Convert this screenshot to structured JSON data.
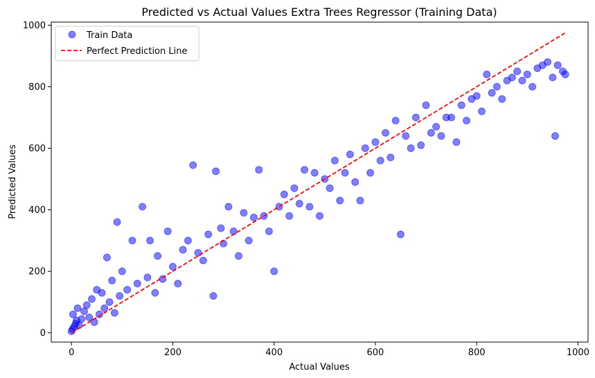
{
  "chart_data": {
    "type": "scatter",
    "title": "Predicted vs Actual Values Extra Trees Regressor (Training Data)",
    "xlabel": "Actual Values",
    "ylabel": "Predicted Values",
    "xlim": [
      -40,
      1020
    ],
    "ylim": [
      -30,
      1010
    ],
    "xticks": [
      0,
      200,
      400,
      600,
      800,
      1000
    ],
    "yticks": [
      0,
      200,
      400,
      600,
      800,
      1000
    ],
    "grid": false,
    "legend_position": "top-left",
    "series": [
      {
        "name": "Train Data",
        "kind": "scatter",
        "color": "#0000ff",
        "opacity": 0.5,
        "points": [
          [
            0,
            5
          ],
          [
            2,
            12
          ],
          [
            5,
            20
          ],
          [
            8,
            30
          ],
          [
            10,
            40
          ],
          [
            3,
            60
          ],
          [
            12,
            80
          ],
          [
            15,
            25
          ],
          [
            20,
            45
          ],
          [
            25,
            70
          ],
          [
            30,
            90
          ],
          [
            35,
            50
          ],
          [
            40,
            110
          ],
          [
            45,
            35
          ],
          [
            50,
            140
          ],
          [
            55,
            60
          ],
          [
            60,
            130
          ],
          [
            65,
            80
          ],
          [
            70,
            245
          ],
          [
            75,
            100
          ],
          [
            80,
            170
          ],
          [
            85,
            65
          ],
          [
            90,
            360
          ],
          [
            95,
            120
          ],
          [
            100,
            200
          ],
          [
            110,
            140
          ],
          [
            120,
            300
          ],
          [
            130,
            160
          ],
          [
            140,
            410
          ],
          [
            150,
            180
          ],
          [
            155,
            300
          ],
          [
            165,
            130
          ],
          [
            170,
            250
          ],
          [
            180,
            175
          ],
          [
            190,
            330
          ],
          [
            200,
            215
          ],
          [
            210,
            160
          ],
          [
            220,
            270
          ],
          [
            230,
            300
          ],
          [
            240,
            545
          ],
          [
            250,
            260
          ],
          [
            260,
            235
          ],
          [
            270,
            320
          ],
          [
            280,
            120
          ],
          [
            285,
            525
          ],
          [
            295,
            340
          ],
          [
            300,
            290
          ],
          [
            310,
            410
          ],
          [
            320,
            330
          ],
          [
            330,
            250
          ],
          [
            340,
            390
          ],
          [
            350,
            300
          ],
          [
            360,
            375
          ],
          [
            370,
            530
          ],
          [
            380,
            380
          ],
          [
            390,
            330
          ],
          [
            400,
            200
          ],
          [
            410,
            410
          ],
          [
            420,
            450
          ],
          [
            430,
            380
          ],
          [
            440,
            470
          ],
          [
            450,
            420
          ],
          [
            460,
            530
          ],
          [
            470,
            410
          ],
          [
            480,
            520
          ],
          [
            490,
            380
          ],
          [
            500,
            500
          ],
          [
            510,
            470
          ],
          [
            520,
            560
          ],
          [
            530,
            430
          ],
          [
            540,
            520
          ],
          [
            550,
            580
          ],
          [
            560,
            490
          ],
          [
            570,
            430
          ],
          [
            580,
            600
          ],
          [
            590,
            520
          ],
          [
            600,
            620
          ],
          [
            610,
            560
          ],
          [
            620,
            650
          ],
          [
            630,
            570
          ],
          [
            640,
            690
          ],
          [
            650,
            320
          ],
          [
            660,
            640
          ],
          [
            670,
            600
          ],
          [
            680,
            700
          ],
          [
            690,
            610
          ],
          [
            700,
            740
          ],
          [
            710,
            650
          ],
          [
            720,
            670
          ],
          [
            730,
            640
          ],
          [
            740,
            700
          ],
          [
            750,
            700
          ],
          [
            760,
            620
          ],
          [
            770,
            740
          ],
          [
            780,
            690
          ],
          [
            790,
            760
          ],
          [
            800,
            770
          ],
          [
            810,
            720
          ],
          [
            820,
            840
          ],
          [
            830,
            780
          ],
          [
            840,
            800
          ],
          [
            850,
            760
          ],
          [
            860,
            820
          ],
          [
            870,
            830
          ],
          [
            880,
            850
          ],
          [
            890,
            820
          ],
          [
            900,
            840
          ],
          [
            910,
            800
          ],
          [
            920,
            860
          ],
          [
            930,
            870
          ],
          [
            940,
            880
          ],
          [
            950,
            830
          ],
          [
            955,
            640
          ],
          [
            960,
            870
          ],
          [
            970,
            850
          ],
          [
            975,
            840
          ]
        ]
      },
      {
        "name": "Perfect Prediction Line",
        "kind": "line",
        "color": "#ff0000",
        "dash": "dashed",
        "points": [
          [
            0,
            0
          ],
          [
            975,
            975
          ]
        ]
      }
    ]
  }
}
